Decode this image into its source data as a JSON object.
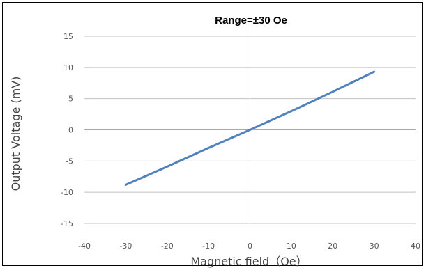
{
  "chart_data": {
    "type": "line",
    "title": "Range=±30 Oe",
    "xlabel": "Magnetic field（Oe）",
    "ylabel": "Output Voltage (mV)",
    "xlim": [
      -40,
      40
    ],
    "ylim": [
      -15,
      15
    ],
    "xticks": [
      -40,
      -30,
      -20,
      -10,
      0,
      10,
      20,
      30,
      40
    ],
    "yticks": [
      15,
      10,
      5,
      0,
      -5,
      -10,
      -15
    ],
    "grid": "horizontal",
    "legend": "none",
    "series": [
      {
        "x": [
          -30,
          -20,
          -10,
          0,
          10,
          20,
          30
        ],
        "y": [
          -8.8,
          -5.9,
          -2.9,
          0,
          3.0,
          6.1,
          9.3
        ],
        "color": "#4f81bd"
      }
    ],
    "colors": {
      "line": "#4f81bd",
      "grid": "#c0c0c0",
      "zero_axis": "#aaaaaa"
    }
  }
}
